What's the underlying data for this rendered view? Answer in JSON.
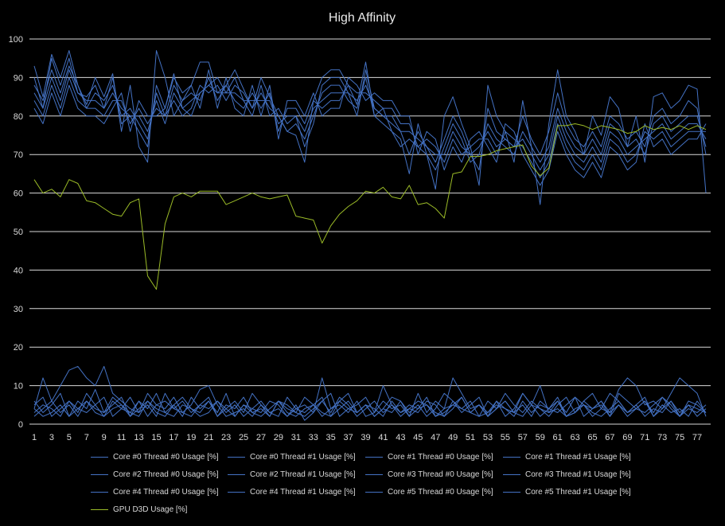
{
  "chart_data": {
    "type": "line",
    "title": "High Affinity",
    "xlabel": "",
    "ylabel": "",
    "ylim": [
      0,
      100
    ],
    "yticks": [
      0,
      10,
      20,
      30,
      40,
      50,
      60,
      70,
      80,
      90,
      100
    ],
    "x_tick_labels": [
      "1",
      "3",
      "5",
      "7",
      "9",
      "11",
      "13",
      "15",
      "17",
      "19",
      "21",
      "23",
      "25",
      "27",
      "29",
      "31",
      "33",
      "35",
      "37",
      "39",
      "41",
      "43",
      "45",
      "47",
      "49",
      "51",
      "53",
      "55",
      "57",
      "59",
      "61",
      "63",
      "65",
      "67",
      "69",
      "71",
      "73",
      "75",
      "77"
    ],
    "x_count": 78,
    "grid": "horizontal",
    "legend_position": "bottom",
    "colors": {
      "cores": "#4472c4",
      "gpu": "#9bbb27",
      "grid": "#d9d9d9",
      "text": "#d9d9d9"
    },
    "series": [
      {
        "name": "Core #0 Thread #0 Usage [%]",
        "values": [
          93,
          85,
          96,
          90,
          97,
          88,
          83,
          90,
          85,
          91,
          76,
          88,
          72,
          68,
          97,
          90,
          80,
          84,
          88,
          94,
          94,
          86,
          88,
          92,
          87,
          82,
          90,
          85,
          80,
          76,
          75,
          68,
          84,
          90,
          92,
          92,
          88,
          83,
          94,
          80,
          82,
          76,
          74,
          65,
          78,
          70,
          61,
          80,
          85,
          78,
          72,
          62,
          88,
          80,
          76,
          68,
          84,
          72,
          57,
          78,
          92,
          80,
          76,
          70,
          80,
          75,
          85,
          82,
          72,
          80,
          68,
          85,
          86,
          82,
          84,
          88,
          87,
          60
        ]
      },
      {
        "name": "Core #0 Thread #1 Usage [%]",
        "values": [
          4,
          12,
          6,
          10,
          14,
          15,
          12,
          10,
          15,
          8,
          6,
          4,
          3,
          8,
          5,
          6,
          4,
          3,
          5,
          9,
          10,
          5,
          2,
          3,
          4,
          2,
          5,
          3,
          4,
          2,
          5,
          1,
          3,
          12,
          4,
          5,
          3,
          6,
          2,
          3,
          10,
          5,
          3,
          4,
          6,
          5,
          2,
          4,
          12,
          8,
          4,
          5,
          3,
          6,
          2,
          4,
          8,
          5,
          10,
          3,
          4,
          2,
          3,
          6,
          8,
          4,
          3,
          9,
          12,
          10,
          5,
          6,
          4,
          8,
          12,
          10,
          8,
          2
        ]
      },
      {
        "name": "Core #1 Thread #0 Usage [%]",
        "values": [
          90,
          82,
          95,
          88,
          95,
          86,
          85,
          88,
          82,
          90,
          78,
          80,
          76,
          72,
          88,
          82,
          91,
          82,
          80,
          86,
          88,
          90,
          86,
          90,
          84,
          80,
          88,
          80,
          82,
          78,
          80,
          72,
          78,
          88,
          90,
          90,
          86,
          80,
          92,
          82,
          80,
          78,
          76,
          70,
          76,
          72,
          68,
          74,
          80,
          76,
          70,
          66,
          82,
          76,
          74,
          72,
          80,
          74,
          70,
          76,
          86,
          78,
          74,
          72,
          76,
          72,
          80,
          78,
          74,
          76,
          72,
          80,
          82,
          78,
          80,
          84,
          82,
          70
        ]
      },
      {
        "name": "Core #1 Thread #1 Usage [%]",
        "values": [
          6,
          3,
          5,
          8,
          2,
          6,
          4,
          9,
          3,
          5,
          7,
          2,
          6,
          4,
          8,
          3,
          5,
          2,
          7,
          4,
          6,
          3,
          8,
          2,
          5,
          4,
          6,
          3,
          2,
          7,
          4,
          5,
          3,
          6,
          8,
          2,
          4,
          5,
          7,
          3,
          6,
          4,
          5,
          2,
          8,
          3,
          6,
          4,
          5,
          7,
          3,
          2,
          6,
          4,
          8,
          5,
          3,
          6,
          4,
          2,
          5,
          7,
          3,
          6,
          4,
          5,
          2,
          8,
          6,
          4,
          3,
          5,
          7,
          4,
          2,
          6,
          5,
          3
        ]
      },
      {
        "name": "Core #2 Thread #0 Usage [%]",
        "values": [
          88,
          84,
          92,
          86,
          93,
          88,
          82,
          86,
          84,
          88,
          80,
          82,
          78,
          74,
          86,
          80,
          84,
          80,
          82,
          88,
          86,
          88,
          84,
          88,
          86,
          82,
          86,
          82,
          80,
          76,
          78,
          74,
          80,
          86,
          88,
          88,
          84,
          82,
          90,
          80,
          78,
          76,
          72,
          74,
          72,
          70,
          66,
          72,
          78,
          74,
          68,
          70,
          78,
          74,
          72,
          70,
          76,
          72,
          68,
          72,
          82,
          76,
          72,
          70,
          74,
          70,
          78,
          76,
          72,
          74,
          70,
          78,
          80,
          76,
          78,
          80,
          80,
          72
        ]
      },
      {
        "name": "Core #2 Thread #1 Usage [%]",
        "values": [
          5,
          7,
          2,
          4,
          6,
          3,
          8,
          5,
          2,
          6,
          4,
          7,
          3,
          5,
          2,
          8,
          4,
          6,
          3,
          5,
          7,
          2,
          4,
          6,
          3,
          8,
          5,
          2,
          6,
          4,
          3,
          7,
          5,
          2,
          4,
          6,
          8,
          3,
          5,
          2,
          4,
          7,
          6,
          3,
          5,
          2,
          4,
          8,
          6,
          3,
          5,
          7,
          2,
          4,
          6,
          3,
          8,
          5,
          2,
          4,
          6,
          3,
          7,
          5,
          2,
          4,
          8,
          6,
          3,
          5,
          7,
          2,
          4,
          6,
          3,
          5,
          2,
          4
        ]
      },
      {
        "name": "Core #3 Thread #0 Usage [%]",
        "values": [
          86,
          82,
          90,
          84,
          92,
          86,
          84,
          84,
          82,
          86,
          82,
          80,
          80,
          76,
          84,
          78,
          86,
          82,
          84,
          86,
          88,
          86,
          86,
          86,
          84,
          84,
          84,
          84,
          78,
          80,
          80,
          76,
          82,
          84,
          86,
          86,
          86,
          84,
          88,
          82,
          80,
          80,
          76,
          76,
          74,
          72,
          70,
          70,
          76,
          72,
          70,
          72,
          76,
          72,
          74,
          72,
          74,
          70,
          66,
          70,
          80,
          74,
          70,
          68,
          72,
          68,
          76,
          74,
          70,
          72,
          74,
          76,
          78,
          74,
          76,
          78,
          78,
          74
        ]
      },
      {
        "name": "Core #3 Thread #1 Usage [%]",
        "values": [
          3,
          5,
          4,
          2,
          6,
          4,
          3,
          5,
          7,
          2,
          4,
          3,
          6,
          2,
          5,
          4,
          7,
          3,
          2,
          5,
          4,
          6,
          3,
          5,
          2,
          4,
          3,
          6,
          5,
          2,
          4,
          3,
          5,
          7,
          2,
          4,
          6,
          3,
          5,
          4,
          2,
          6,
          3,
          5,
          4,
          7,
          2,
          3,
          5,
          4,
          6,
          2,
          3,
          5,
          4,
          2,
          6,
          3,
          5,
          4,
          7,
          2,
          3,
          5,
          4,
          6,
          2,
          5,
          3,
          4,
          6,
          2,
          5,
          3,
          4,
          2,
          6,
          3
        ]
      },
      {
        "name": "Core #4 Thread #0 Usage [%]",
        "values": [
          84,
          80,
          88,
          82,
          90,
          84,
          82,
          82,
          80,
          84,
          84,
          78,
          82,
          78,
          82,
          80,
          88,
          84,
          86,
          84,
          90,
          84,
          88,
          84,
          82,
          86,
          82,
          86,
          76,
          82,
          82,
          78,
          84,
          82,
          84,
          84,
          88,
          86,
          86,
          84,
          82,
          82,
          78,
          78,
          72,
          74,
          72,
          68,
          74,
          70,
          72,
          74,
          74,
          70,
          76,
          74,
          72,
          68,
          64,
          68,
          78,
          72,
          68,
          66,
          70,
          66,
          74,
          72,
          68,
          70,
          76,
          74,
          76,
          72,
          74,
          76,
          76,
          76
        ]
      },
      {
        "name": "Core #4 Thread #1 Usage [%]",
        "values": [
          2,
          4,
          6,
          3,
          5,
          2,
          6,
          4,
          3,
          7,
          5,
          2,
          4,
          6,
          3,
          2,
          5,
          7,
          4,
          3,
          6,
          2,
          5,
          4,
          7,
          3,
          2,
          4,
          6,
          5,
          3,
          2,
          4,
          6,
          3,
          7,
          5,
          2,
          4,
          6,
          3,
          5,
          2,
          4,
          3,
          6,
          5,
          2,
          4,
          7,
          3,
          5,
          2,
          6,
          4,
          3,
          5,
          2,
          6,
          4,
          3,
          5,
          7,
          2,
          4,
          6,
          3,
          5,
          2,
          4,
          6,
          3,
          7,
          5,
          2,
          4,
          3,
          5
        ]
      },
      {
        "name": "Core #5 Thread #0 Usage [%]",
        "values": [
          82,
          78,
          86,
          80,
          88,
          82,
          80,
          80,
          78,
          82,
          86,
          76,
          84,
          80,
          80,
          82,
          90,
          86,
          88,
          82,
          92,
          82,
          90,
          82,
          80,
          88,
          80,
          88,
          74,
          84,
          84,
          80,
          86,
          80,
          82,
          82,
          90,
          88,
          84,
          86,
          84,
          84,
          80,
          80,
          70,
          76,
          74,
          66,
          72,
          68,
          74,
          76,
          72,
          68,
          78,
          76,
          70,
          66,
          62,
          66,
          76,
          70,
          66,
          64,
          68,
          64,
          72,
          70,
          66,
          68,
          78,
          72,
          74,
          70,
          72,
          74,
          74,
          78
        ]
      },
      {
        "name": "Core #5 Thread #1 Usage [%]",
        "values": [
          4,
          2,
          3,
          5,
          2,
          4,
          6,
          3,
          2,
          4,
          5,
          3,
          2,
          6,
          4,
          3,
          2,
          5,
          4,
          2,
          3,
          6,
          4,
          2,
          5,
          3,
          4,
          2,
          6,
          3,
          2,
          4,
          5,
          3,
          2,
          6,
          4,
          3,
          5,
          2,
          4,
          3,
          6,
          2,
          4,
          5,
          3,
          2,
          6,
          4,
          3,
          5,
          2,
          4,
          6,
          3,
          2,
          5,
          4,
          3,
          6,
          2,
          4,
          5,
          3,
          2,
          4,
          6,
          3,
          5,
          2,
          4,
          3,
          6,
          2,
          5,
          4,
          3
        ]
      },
      {
        "name": "GPU D3D Usage [%]",
        "values": [
          63.5,
          60,
          61,
          59,
          63.5,
          62.5,
          58,
          57.5,
          56,
          54.5,
          54,
          57.5,
          58.5,
          38.5,
          35,
          52,
          59,
          60,
          59,
          60.5,
          60.5,
          60.5,
          57,
          58,
          59,
          60,
          59,
          58.5,
          59,
          59.5,
          54,
          53.5,
          53,
          47,
          51.5,
          54.5,
          56.5,
          58,
          60.5,
          60,
          61.5,
          59,
          58.5,
          62,
          57,
          57.5,
          56,
          53.5,
          65,
          65.5,
          69.5,
          69.5,
          70,
          71,
          71.5,
          72,
          72.5,
          67,
          64.5,
          66.5,
          77.5,
          77.5,
          78,
          77.5,
          76.5,
          77.5,
          77,
          76.5,
          75.5,
          76,
          77.5,
          76.5,
          77,
          76.5,
          77.5,
          76.5,
          77.5,
          76.5
        ]
      }
    ]
  }
}
